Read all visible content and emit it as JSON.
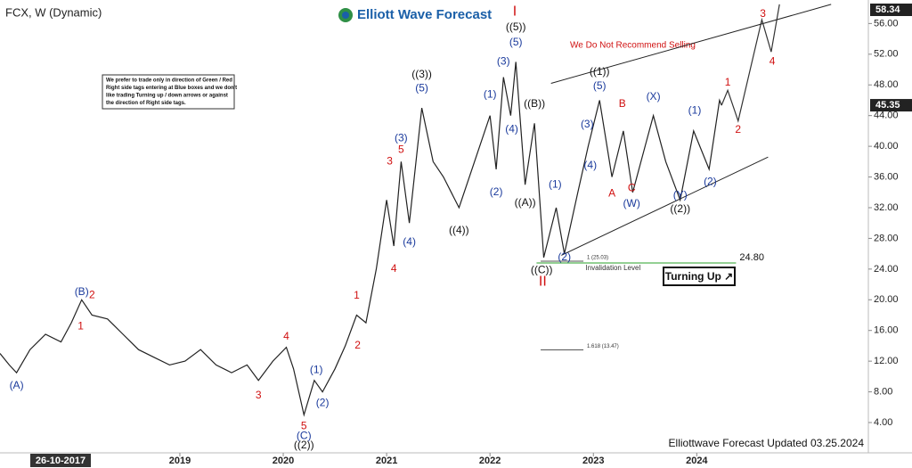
{
  "chart_data": {
    "type": "line",
    "title": "FCX, W (Dynamic)",
    "brand": "Elliott Wave Forecast",
    "footer": "Elliottwave Forecast Updated 03.25.2024",
    "warning": "We Do Not Recommend Selling",
    "disclaimer": [
      "We prefer to trade only in direction of Green / Red",
      "Right side tags entering at Blue boxes and we don't",
      "like trading Turning up / down arrows or against",
      "the direction of Right side tags."
    ],
    "badge": "Turning Up ↗",
    "cursor_date": "26-10-2017",
    "xlim": [
      2017.26,
      2025.66
    ],
    "xticks": [
      2019,
      2020,
      2021,
      2022,
      2023,
      2024
    ],
    "ylim": [
      0.4,
      58.6
    ],
    "yticks": [
      {
        "value": 4,
        "label": "4.00"
      },
      {
        "value": 8,
        "label": "8.00"
      },
      {
        "value": 12,
        "label": "12.00"
      },
      {
        "value": 16,
        "label": "16.00"
      },
      {
        "value": 20,
        "label": "20.00"
      },
      {
        "value": 24,
        "label": "24.00"
      },
      {
        "value": 28,
        "label": "28.00"
      },
      {
        "value": 32,
        "label": "32.00"
      },
      {
        "value": 36,
        "label": "36.00"
      },
      {
        "value": 40,
        "label": "40.00"
      },
      {
        "value": 44,
        "label": "44.00"
      },
      {
        "value": 48,
        "label": "48.00"
      },
      {
        "value": 52,
        "label": "52.00"
      },
      {
        "value": 56,
        "label": "56.00"
      }
    ],
    "price_labels": [
      {
        "value": 58.34,
        "label": "58.34"
      },
      {
        "value": 45.35,
        "label": "45.35"
      }
    ],
    "series": [
      {
        "color": "#222222",
        "x": [
          2017.26,
          2017.35,
          2017.42,
          2017.55,
          2017.7,
          2017.85,
          2017.95,
          2018.05,
          2018.15,
          2018.3,
          2018.45,
          2018.6,
          2018.75,
          2018.9,
          2019.05,
          2019.2,
          2019.35,
          2019.5,
          2019.65,
          2019.76,
          2019.9,
          2020.03,
          2020.1,
          2020.2,
          2020.3,
          2020.38,
          2020.5,
          2020.6,
          2020.71,
          2020.8,
          2020.9,
          2021.0,
          2021.07,
          2021.14,
          2021.22,
          2021.34,
          2021.45,
          2021.55,
          2021.7,
          2021.85,
          2022.0,
          2022.06,
          2022.13,
          2022.2,
          2022.25,
          2022.34,
          2022.43,
          2022.52,
          2022.64,
          2022.72,
          2022.85,
          2022.95,
          2023.06,
          2023.18,
          2023.29,
          2023.38,
          2023.5,
          2023.58,
          2023.7,
          2023.84,
          2023.97,
          2024.12,
          2024.22,
          2024.24
        ],
        "values": [
          13,
          11.5,
          10.5,
          13.5,
          15.5,
          14.5,
          17,
          20,
          18,
          17.5,
          15.5,
          13.5,
          12.5,
          11.5,
          12,
          13.5,
          11.5,
          10.5,
          11.5,
          9.5,
          12,
          13.8,
          11,
          5,
          9.5,
          8,
          11,
          14,
          18,
          17,
          24,
          33,
          27,
          38,
          30,
          45,
          38,
          36,
          32,
          38,
          44,
          37,
          49,
          44,
          51,
          35,
          43,
          25.5,
          32,
          26,
          34,
          40,
          46,
          36,
          42,
          34,
          40,
          44,
          38,
          33,
          42,
          37,
          46,
          45.35
        ]
      },
      {
        "color": "#333333",
        "x": [
          2024.24,
          2024.3,
          2024.4,
          2024.63,
          2024.72,
          2024.8
        ],
        "values": [
          45.35,
          47.3,
          43.3,
          56.5,
          52.3,
          58.5
        ]
      }
    ],
    "channel": [
      {
        "x": [
          2022.59,
          2025.3
        ],
        "values": [
          48.2,
          58.5
        ]
      },
      {
        "x": [
          2022.69,
          2024.69
        ],
        "values": [
          25.8,
          38.6
        ]
      }
    ],
    "invalidation": {
      "value": 24.8,
      "label": "24.80",
      "text": "Invalidation Level",
      "x": [
        2022.45,
        2024.38
      ]
    },
    "fib_levels": [
      {
        "value": 25.03,
        "label": "1 (25.03)"
      },
      {
        "value": 13.47,
        "label": "1.618 (13.47)"
      }
    ],
    "annotations": [
      {
        "text": "(A)",
        "x": 2017.42,
        "y": 8.8,
        "color": "#1a3a9c"
      },
      {
        "text": "(B)",
        "x": 2018.05,
        "y": 21,
        "color": "#1a3a9c"
      },
      {
        "text": "2",
        "x": 2018.15,
        "y": 20.6,
        "color": "#d01010"
      },
      {
        "text": "1",
        "x": 2018.04,
        "y": 16.5,
        "color": "#d01010"
      },
      {
        "text": "3",
        "x": 2019.76,
        "y": 7.5,
        "color": "#d01010"
      },
      {
        "text": "4",
        "x": 2020.03,
        "y": 15.2,
        "color": "#d01010"
      },
      {
        "text": "5",
        "x": 2020.2,
        "y": 3.5,
        "color": "#d01010"
      },
      {
        "text": "(C)",
        "x": 2020.2,
        "y": 2.2,
        "color": "#1a3a9c"
      },
      {
        "text": "((2))",
        "x": 2020.2,
        "y": 1.0,
        "color": "#111111"
      },
      {
        "text": "(1)",
        "x": 2020.32,
        "y": 10.8,
        "color": "#1a3a9c"
      },
      {
        "text": "(2)",
        "x": 2020.38,
        "y": 6.5,
        "color": "#1a3a9c"
      },
      {
        "text": "1",
        "x": 2020.71,
        "y": 20.5,
        "color": "#d01010"
      },
      {
        "text": "2",
        "x": 2020.72,
        "y": 14,
        "color": "#d01010"
      },
      {
        "text": "3",
        "x": 2021.03,
        "y": 38,
        "color": "#d01010"
      },
      {
        "text": "4",
        "x": 2021.07,
        "y": 24,
        "color": "#d01010"
      },
      {
        "text": "5",
        "x": 2021.14,
        "y": 39.5,
        "color": "#d01010"
      },
      {
        "text": "(3)",
        "x": 2021.14,
        "y": 41,
        "color": "#1a3a9c"
      },
      {
        "text": "(4)",
        "x": 2021.22,
        "y": 27.5,
        "color": "#1a3a9c"
      },
      {
        "text": "(5)",
        "x": 2021.34,
        "y": 47.5,
        "color": "#1a3a9c"
      },
      {
        "text": "((3))",
        "x": 2021.34,
        "y": 49.3,
        "color": "#111111"
      },
      {
        "text": "((4))",
        "x": 2021.7,
        "y": 29,
        "color": "#111111"
      },
      {
        "text": "(1)",
        "x": 2022.0,
        "y": 46.7,
        "color": "#1a3a9c"
      },
      {
        "text": "(2)",
        "x": 2022.06,
        "y": 34,
        "color": "#1a3a9c"
      },
      {
        "text": "(3)",
        "x": 2022.13,
        "y": 51,
        "color": "#1a3a9c"
      },
      {
        "text": "(4)",
        "x": 2022.21,
        "y": 42.2,
        "color": "#1a3a9c"
      },
      {
        "text": "(5)",
        "x": 2022.25,
        "y": 53.5,
        "color": "#1a3a9c"
      },
      {
        "text": "((5))",
        "x": 2022.25,
        "y": 55.5,
        "color": "#111111"
      },
      {
        "text": "I",
        "x": 2022.24,
        "y": 57.5,
        "color": "#d01010"
      },
      {
        "text": "((A))",
        "x": 2022.34,
        "y": 32.6,
        "color": "#111111"
      },
      {
        "text": "((B))",
        "x": 2022.43,
        "y": 45.5,
        "color": "#111111"
      },
      {
        "text": "((C))",
        "x": 2022.5,
        "y": 23.8,
        "color": "#111111"
      },
      {
        "text": "II",
        "x": 2022.51,
        "y": 22.3,
        "color": "#d01010"
      },
      {
        "text": "(1)",
        "x": 2022.63,
        "y": 35,
        "color": "#1a3a9c"
      },
      {
        "text": "(2)",
        "x": 2022.72,
        "y": 25.5,
        "color": "#1a3a9c"
      },
      {
        "text": "(3)",
        "x": 2022.94,
        "y": 42.8,
        "color": "#1a3a9c"
      },
      {
        "text": "(4)",
        "x": 2022.97,
        "y": 37.5,
        "color": "#1a3a9c"
      },
      {
        "text": "(5)",
        "x": 2023.06,
        "y": 47.8,
        "color": "#1a3a9c"
      },
      {
        "text": "((1))",
        "x": 2023.06,
        "y": 49.7,
        "color": "#111111"
      },
      {
        "text": "A",
        "x": 2023.18,
        "y": 33.8,
        "color": "#d01010"
      },
      {
        "text": "B",
        "x": 2023.28,
        "y": 45.5,
        "color": "#d01010"
      },
      {
        "text": "C",
        "x": 2023.37,
        "y": 34.5,
        "color": "#d01010"
      },
      {
        "text": "(W)",
        "x": 2023.37,
        "y": 32.5,
        "color": "#1a3a9c"
      },
      {
        "text": "(X)",
        "x": 2023.58,
        "y": 46.4,
        "color": "#1a3a9c"
      },
      {
        "text": "(Y)",
        "x": 2023.84,
        "y": 33.6,
        "color": "#1a3a9c"
      },
      {
        "text": "((2))",
        "x": 2023.84,
        "y": 31.8,
        "color": "#111111"
      },
      {
        "text": "(1)",
        "x": 2023.98,
        "y": 44.6,
        "color": "#1a3a9c"
      },
      {
        "text": "(2)",
        "x": 2024.13,
        "y": 35.3,
        "color": "#1a3a9c"
      },
      {
        "text": "1",
        "x": 2024.3,
        "y": 48.3,
        "color": "#d01010"
      },
      {
        "text": "2",
        "x": 2024.4,
        "y": 42.1,
        "color": "#d01010"
      },
      {
        "text": "3",
        "x": 2024.64,
        "y": 57.2,
        "color": "#d01010"
      },
      {
        "text": "4",
        "x": 2024.73,
        "y": 51,
        "color": "#d01010"
      }
    ]
  }
}
